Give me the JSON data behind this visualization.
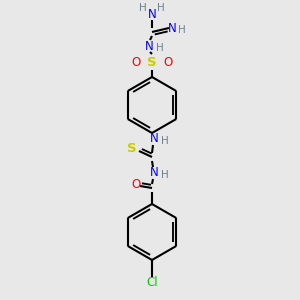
{
  "bg_color": "#e8e8e8",
  "atom_colors": {
    "C": "#000000",
    "H": "#708090",
    "N": "#0000ff",
    "O": "#ff0000",
    "S_sulfonyl": "#cccc00",
    "S_thio": "#cccc00",
    "Cl": "#00cc00"
  },
  "bond_color": "#000000",
  "figsize": [
    3.0,
    3.0
  ],
  "dpi": 100
}
